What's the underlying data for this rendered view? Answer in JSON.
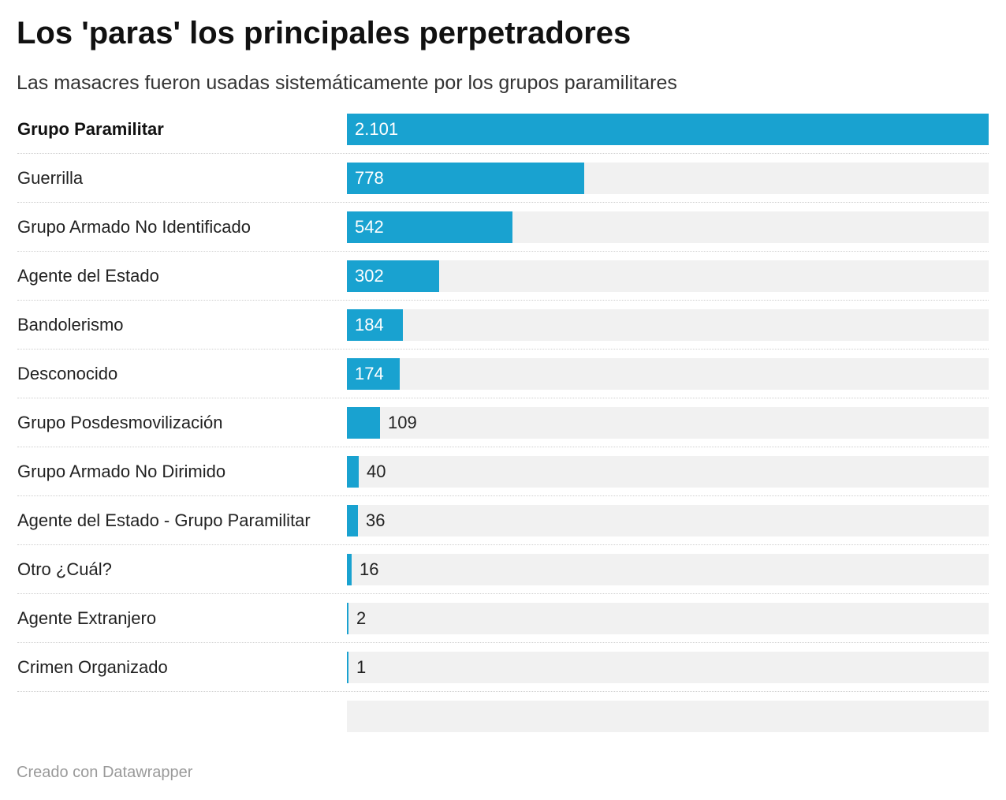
{
  "title": "Los 'paras' los principales perpetradores",
  "subtitle": "Las masacres fueron usadas sistemáticamente por los grupos paramilitares",
  "footer": "Creado con Datawrapper",
  "colors": {
    "bar": "#19a2d0",
    "track": "#f1f1f1",
    "text": "#222222",
    "footer": "#9a9a9a"
  },
  "chart_data": {
    "type": "bar",
    "orientation": "horizontal",
    "title": "Los 'paras' los principales perpetradores",
    "subtitle": "Las masacres fueron usadas sistemáticamente por los grupos paramilitares",
    "categories": [
      "Grupo Paramilitar",
      "Guerrilla",
      "Grupo Armado No Identificado",
      "Agente del Estado",
      "Bandolerismo",
      "Desconocido",
      "Grupo Posdesmovilización",
      "Grupo Armado No Dirimido",
      "Agente del Estado - Grupo Paramilitar",
      "Otro ¿Cuál?",
      "Agente Extranjero",
      "Crimen Organizado"
    ],
    "values": [
      2101,
      778,
      542,
      302,
      184,
      174,
      109,
      40,
      36,
      16,
      2,
      1
    ],
    "value_labels": [
      "2.101",
      "778",
      "542",
      "302",
      "184",
      "174",
      "109",
      "40",
      "36",
      "16",
      "2",
      "1"
    ],
    "highlighted": [
      "Grupo Paramilitar"
    ],
    "xlim": [
      0,
      2101
    ],
    "grid": false
  }
}
